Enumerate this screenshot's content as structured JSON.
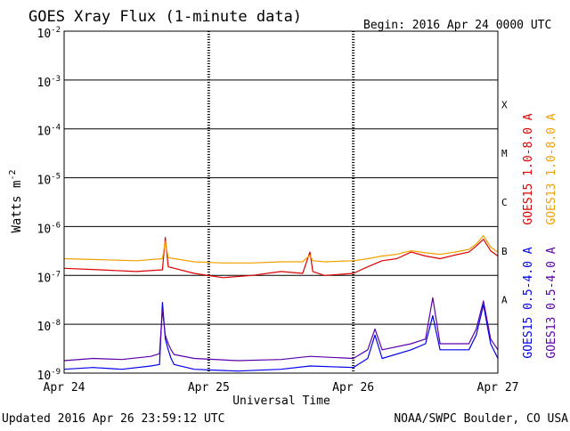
{
  "header": {
    "title": "GOES Xray Flux (1-minute data)",
    "begin": "Begin:  2016 Apr 24 0000 UTC"
  },
  "footer": {
    "updated": "Updated 2016 Apr 26 23:59:12 UTC",
    "credit": "NOAA/SWPC Boulder, CO USA"
  },
  "colors": {
    "goes15_long": "#dd0000",
    "goes13_long": "#f0a000",
    "goes15_short": "#0000ee",
    "goes13_short": "#5a00aa"
  },
  "chart_data": {
    "type": "line",
    "title": "GOES Xray Flux (1-minute data)",
    "xlabel": "Universal Time",
    "ylabel": "Watts m",
    "ylabel_superscript": "-2",
    "y_scale": "log",
    "ylim": [
      1e-09,
      0.01
    ],
    "xlim_days": [
      0,
      3
    ],
    "x_tick_labels": [
      "Apr 24",
      "Apr 25",
      "Apr 26",
      "Apr 27"
    ],
    "y_tick_base": "10",
    "y_tick_exponents": [
      "-2",
      "-3",
      "-4",
      "-5",
      "-6",
      "-7",
      "-8",
      "-9"
    ],
    "flare_classes": [
      "X",
      "M",
      "C",
      "B",
      "A"
    ],
    "grid": true,
    "series": [
      {
        "name": "GOES15 1.0-8.0 A",
        "x": [
          0,
          0.25,
          0.5,
          0.68,
          0.7,
          0.72,
          0.9,
          1.1,
          1.3,
          1.5,
          1.65,
          1.7,
          1.72,
          1.8,
          2.0,
          2.1,
          2.2,
          2.3,
          2.4,
          2.5,
          2.6,
          2.7,
          2.8,
          2.85,
          2.9,
          2.95,
          3.0
        ],
        "values": [
          1.4e-07,
          1.3e-07,
          1.2e-07,
          1.3e-07,
          6e-07,
          1.5e-07,
          1.1e-07,
          9e-08,
          1e-07,
          1.2e-07,
          1.1e-07,
          3e-07,
          1.2e-07,
          1e-07,
          1.1e-07,
          1.5e-07,
          2e-07,
          2.2e-07,
          3e-07,
          2.5e-07,
          2.2e-07,
          2.6e-07,
          3e-07,
          4e-07,
          5.5e-07,
          3.2e-07,
          2.5e-07
        ]
      },
      {
        "name": "GOES13 1.0-8.0 A",
        "x": [
          0,
          0.25,
          0.5,
          0.68,
          0.7,
          0.72,
          0.9,
          1.1,
          1.3,
          1.5,
          1.65,
          1.7,
          1.72,
          1.8,
          2.0,
          2.1,
          2.2,
          2.3,
          2.4,
          2.5,
          2.6,
          2.7,
          2.8,
          2.85,
          2.9,
          2.95,
          3.0
        ],
        "values": [
          2.2e-07,
          2.1e-07,
          2e-07,
          2.2e-07,
          5e-07,
          2.3e-07,
          1.9e-07,
          1.8e-07,
          1.8e-07,
          1.9e-07,
          1.9e-07,
          2.6e-07,
          2e-07,
          1.9e-07,
          2e-07,
          2.2e-07,
          2.5e-07,
          2.7e-07,
          3.2e-07,
          2.9e-07,
          2.7e-07,
          3e-07,
          3.4e-07,
          4.4e-07,
          6.5e-07,
          3.8e-07,
          3e-07
        ]
      },
      {
        "name": "GOES15 0.5-4.0 A",
        "x": [
          0,
          0.2,
          0.4,
          0.6,
          0.66,
          0.68,
          0.7,
          0.72,
          0.74,
          0.76,
          0.9,
          1.2,
          1.5,
          1.7,
          2.0,
          2.1,
          2.15,
          2.2,
          2.4,
          2.5,
          2.55,
          2.6,
          2.8,
          2.85,
          2.9,
          2.95,
          3.0
        ],
        "values": [
          1.2e-09,
          1.3e-09,
          1.2e-09,
          1.4e-09,
          1.5e-09,
          2.8e-08,
          5e-09,
          3e-09,
          2e-09,
          1.5e-09,
          1.2e-09,
          1.1e-09,
          1.2e-09,
          1.4e-09,
          1.3e-09,
          2e-09,
          6e-09,
          2e-09,
          3e-09,
          4e-09,
          1.5e-08,
          3e-09,
          3e-09,
          6e-09,
          2.5e-08,
          4e-09,
          2e-09
        ]
      },
      {
        "name": "GOES13 0.5-4.0 A",
        "x": [
          0,
          0.2,
          0.4,
          0.6,
          0.66,
          0.68,
          0.7,
          0.72,
          0.74,
          0.76,
          0.9,
          1.2,
          1.5,
          1.7,
          2.0,
          2.1,
          2.15,
          2.2,
          2.4,
          2.5,
          2.55,
          2.6,
          2.8,
          2.85,
          2.9,
          2.95,
          3.0
        ],
        "values": [
          1.8e-09,
          2e-09,
          1.9e-09,
          2.2e-09,
          2.5e-09,
          2e-08,
          6e-09,
          4e-09,
          3e-09,
          2.4e-09,
          2e-09,
          1.8e-09,
          1.9e-09,
          2.2e-09,
          2e-09,
          3e-09,
          8e-09,
          3e-09,
          4e-09,
          5e-09,
          3.5e-08,
          4e-09,
          4e-09,
          8e-09,
          3e-08,
          5e-09,
          3e-09
        ]
      }
    ]
  }
}
